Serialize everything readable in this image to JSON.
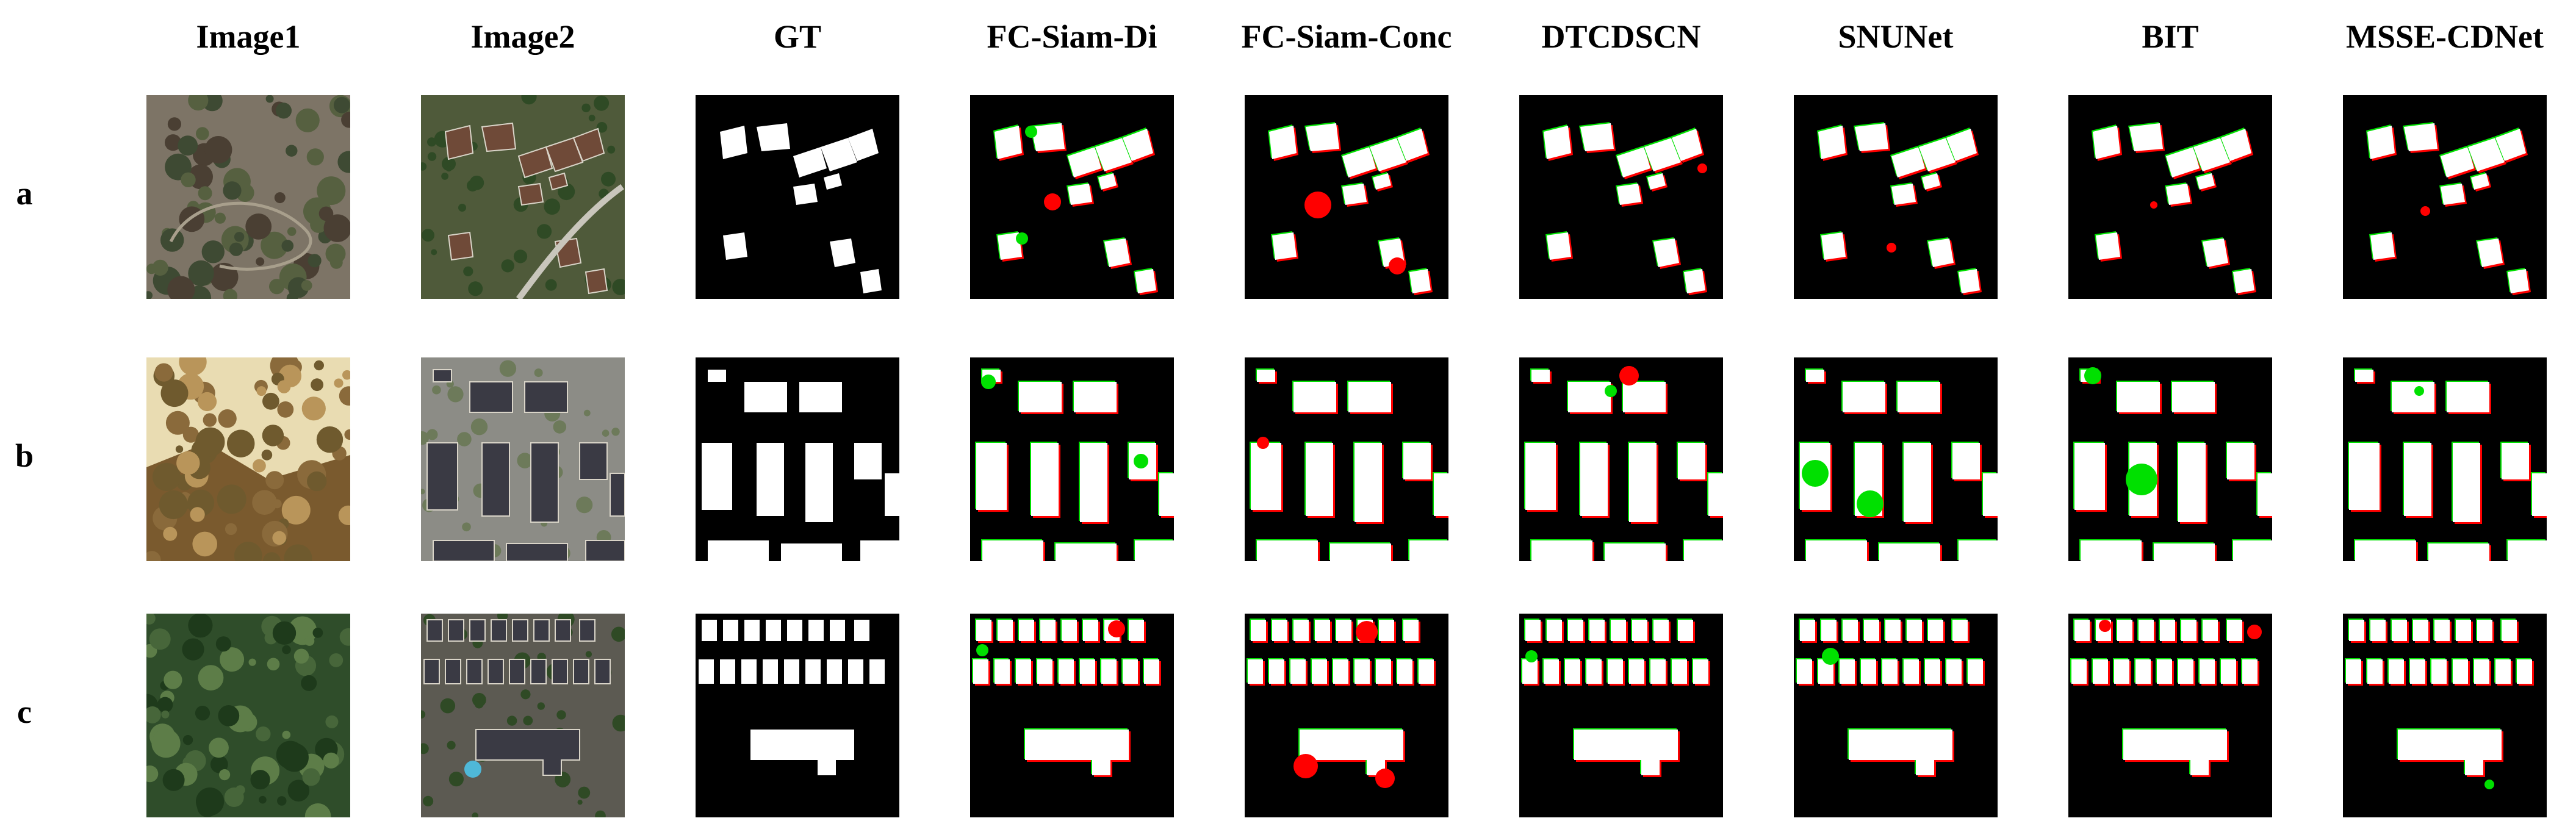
{
  "columns": [
    "Image1",
    "Image2",
    "GT",
    "FC-Siam-Di",
    "FC-Siam-Conc",
    "DTCDSCN",
    "SNUNet",
    "BIT",
    "MSSE-CDNet"
  ],
  "rows": [
    "a",
    "b",
    "c"
  ],
  "panel_types": {
    "Image1": "photo-before",
    "Image2": "photo-after",
    "GT": "ground-truth-mask",
    "FC-Siam-Di": "prediction-mask",
    "FC-Siam-Conc": "prediction-mask",
    "DTCDSCN": "prediction-mask",
    "SNUNet": "prediction-mask",
    "BIT": "prediction-mask",
    "MSSE-CDNet": "prediction-mask"
  },
  "colors": {
    "background": "#ffffff",
    "mask_background": "#000000",
    "true_positive": "#ffffff",
    "false_positive": "#ff0000",
    "false_negative": "#00e000"
  }
}
